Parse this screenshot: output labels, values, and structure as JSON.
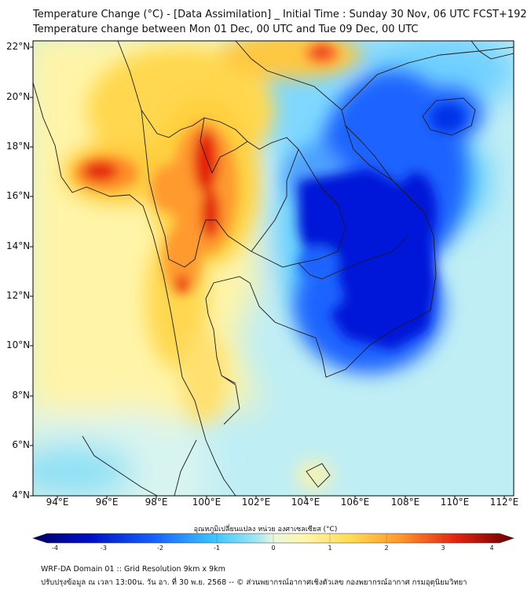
{
  "title_line1": "Temperature Change (°C) - [Data Assimilation] _ Initial Time : Sunday 30 Nov, 06 UTC FCST+192",
  "title_line2": "Temperature change between Mon 01 Dec, 00 UTC and Tue 09 Dec, 00 UTC",
  "lat_ticks": [
    "22°N",
    "20°N",
    "18°N",
    "16°N",
    "14°N",
    "12°N",
    "10°N",
    "8°N",
    "6°N",
    "4°N"
  ],
  "lon_ticks": [
    "94°E",
    "96°E",
    "98°E",
    "100°E",
    "102°E",
    "104°E",
    "106°E",
    "108°E",
    "110°E",
    "112°E"
  ],
  "colorbar": {
    "title": "อุณหภูมิเปลี่ยนแปลง หน่วย องศาเซลเซียส (°C)",
    "ticks": [
      "-4",
      "-3",
      "-2",
      "-1",
      "0",
      "1",
      "2",
      "3",
      "4"
    ],
    "range": [
      -4,
      4
    ]
  },
  "footer_line1": "WRF-DA Domain 01 :: Grid Resolution 9km x 9km",
  "footer_line2": "ปรับปรุงข้อมูล ณ เวลา 13:00น. วัน อา. ที่ 30 พ.ย. 2568 -- © ส่วนพยากรณ์อากาศเชิงตัวเลข กองพยากรณ์อากาศ กรมอุตุนิยมวิทยา",
  "colors": {
    "cold_deep": "#0018d8",
    "cold": "#1e64ff",
    "cool": "#4ecbff",
    "cool_light": "#9ee4f2",
    "neutral": "#e8f6df",
    "warm_light": "#fff3a6",
    "warm": "#ffd850",
    "hot": "#ff9a2e",
    "hottest": "#e42310",
    "border": "#1a1a1a"
  }
}
